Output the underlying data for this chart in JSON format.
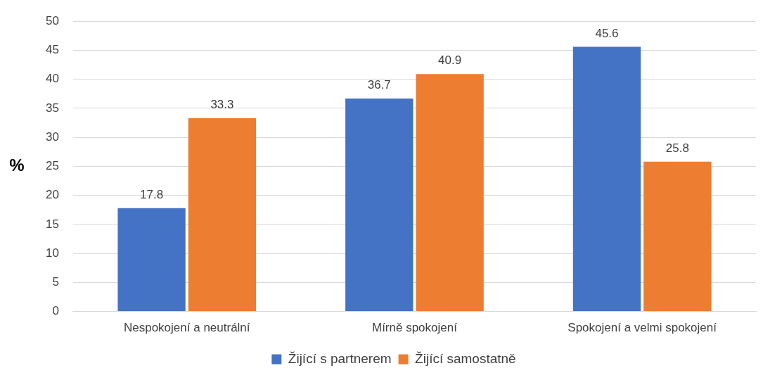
{
  "chart_data": {
    "type": "bar",
    "ylabel": "%",
    "categories": [
      "Nespokojení a neutrální",
      "Mírně spokojení",
      "Spokojení a velmi spokojení"
    ],
    "series": [
      {
        "name": "Žijící s partnerem",
        "color": "#4472c4",
        "values": [
          17.8,
          36.7,
          45.6
        ]
      },
      {
        "name": "Žijící samostatně",
        "color": "#ed7d31",
        "values": [
          33.3,
          40.9,
          25.8
        ]
      }
    ],
    "ylim": [
      0,
      50
    ],
    "yticks": [
      0,
      5,
      10,
      15,
      20,
      25,
      30,
      35,
      40,
      45,
      50
    ],
    "grid": "y",
    "legend": "bottom",
    "data_labels": true
  }
}
